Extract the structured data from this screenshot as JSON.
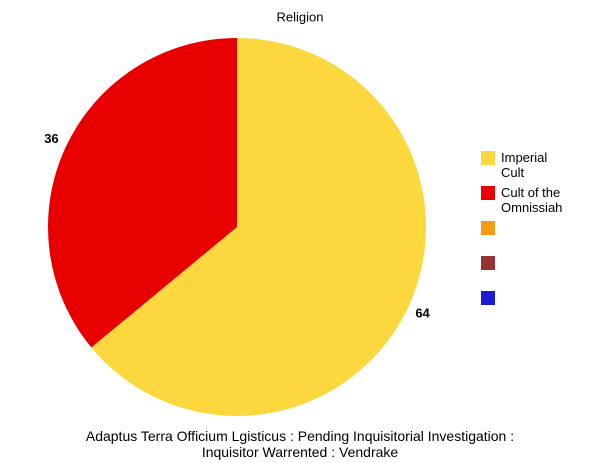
{
  "chart_data": {
    "type": "pie",
    "title": "Religion",
    "categories": [
      "Imperial Cult",
      "Cult of the Omnissiah",
      null,
      null,
      null
    ],
    "values": [
      64,
      36,
      null,
      null,
      null
    ],
    "colors": [
      "#fdd73e",
      "#e80000",
      "#f59b12",
      "#993333",
      "#1b1bd1"
    ],
    "footer": "Adaptus Terra Officium Lgisticus : Pending Inquisitorial Investigation : Inquisitor Warrented : Vendrake"
  }
}
